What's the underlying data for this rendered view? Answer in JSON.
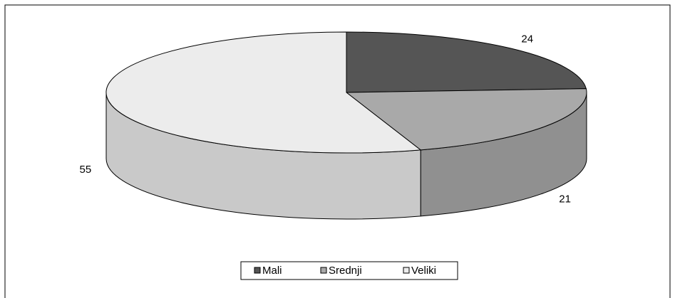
{
  "chart_data": {
    "type": "pie3d",
    "categories": [
      "Mali",
      "Srednji",
      "Veliki"
    ],
    "values": [
      24,
      21,
      55
    ],
    "colors": [
      "#555555",
      "#a9a9a9",
      "#ececec"
    ],
    "legend": "bottom"
  }
}
